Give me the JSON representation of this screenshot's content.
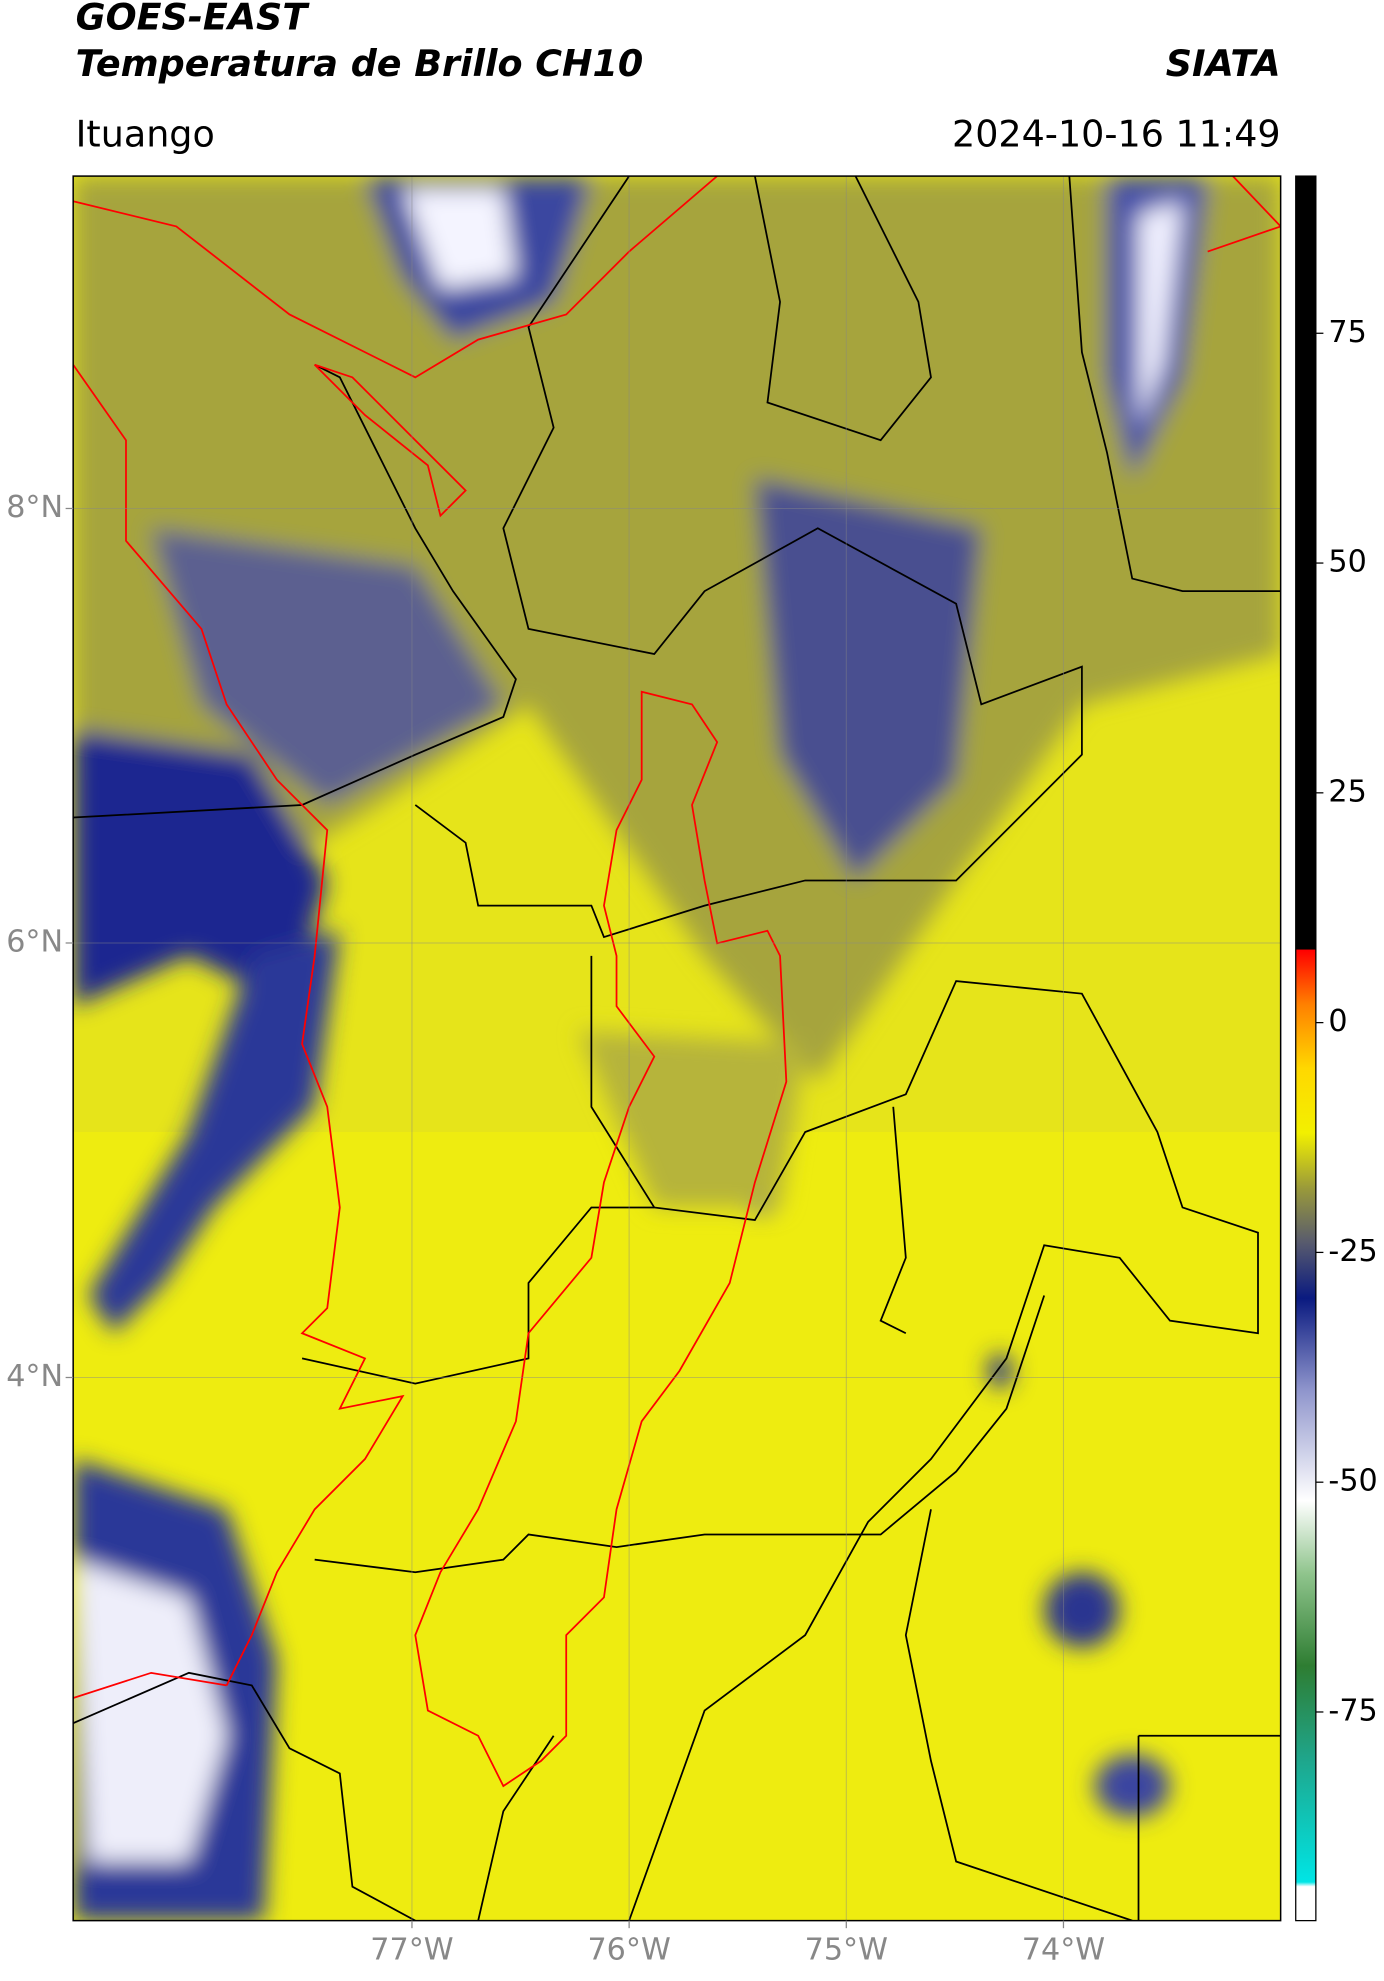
{
  "header": {
    "title": "GOES-EAST",
    "subtitle": "Temperatura de Brillo CH10",
    "source": "SIATA",
    "location": "Ituango",
    "datetime": "2024-10-16 11:49"
  },
  "map": {
    "latlim": [
      1.5,
      9.53
    ],
    "lonlim": [
      -78.56,
      -73.0
    ],
    "latticks": [
      {
        "value": 8,
        "label": "8°N"
      },
      {
        "value": 6,
        "label": "6°N"
      },
      {
        "value": 4,
        "label": "4°N"
      }
    ],
    "lonticks": [
      {
        "value": -77,
        "label": "77°W"
      },
      {
        "value": -76,
        "label": "76°W"
      },
      {
        "value": -75,
        "label": "75°W"
      },
      {
        "value": -74,
        "label": "74°W"
      }
    ],
    "grid": true
  },
  "colorbar": {
    "lim": [
      -97.7,
      92.1
    ],
    "ticks": [
      75,
      50,
      25,
      0,
      -25,
      -50,
      -75
    ],
    "stops": [
      {
        "value": -97.7,
        "color": "#ffffff"
      },
      {
        "value": -94,
        "color": "#ffffff"
      },
      {
        "value": -93.5,
        "color": "#00e5e5"
      },
      {
        "value": -80,
        "color": "#1fa58a"
      },
      {
        "value": -70,
        "color": "#2e7d32"
      },
      {
        "value": -60,
        "color": "#8fc48c"
      },
      {
        "value": -52,
        "color": "#ffffff"
      },
      {
        "value": -40,
        "color": "#8f95cc"
      },
      {
        "value": -30,
        "color": "#0a1a80"
      },
      {
        "value": -24,
        "color": "#575a6e"
      },
      {
        "value": -18,
        "color": "#9a9a3a"
      },
      {
        "value": -12,
        "color": "#f2f000"
      },
      {
        "value": -5,
        "color": "#ffd800"
      },
      {
        "value": 2,
        "color": "#ff8000"
      },
      {
        "value": 7.9,
        "color": "#ff0000"
      },
      {
        "value": 8,
        "color": "#000000"
      },
      {
        "value": 92.1,
        "color": "#000000"
      }
    ]
  }
}
